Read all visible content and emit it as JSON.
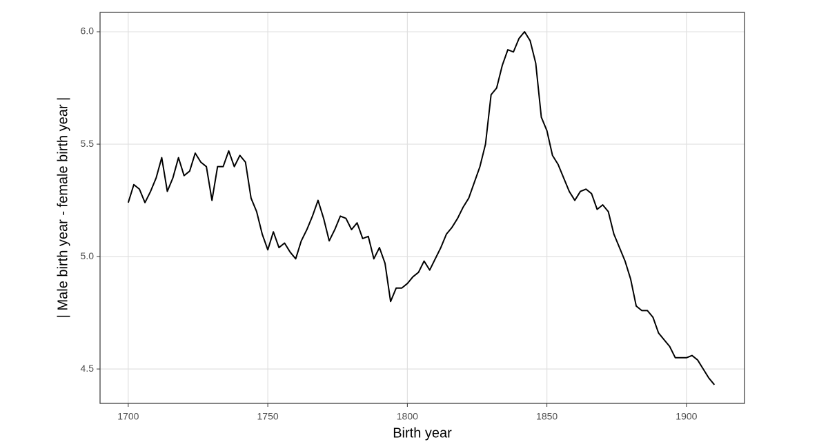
{
  "chart_data": {
    "type": "line",
    "x_label": "Birth year",
    "y_label": "| Male birth year - female birth year |",
    "x": [
      1700,
      1702,
      1704,
      1706,
      1708,
      1710,
      1712,
      1714,
      1716,
      1718,
      1720,
      1722,
      1724,
      1726,
      1728,
      1730,
      1732,
      1734,
      1736,
      1738,
      1740,
      1742,
      1744,
      1746,
      1748,
      1750,
      1752,
      1754,
      1756,
      1758,
      1760,
      1762,
      1764,
      1766,
      1768,
      1770,
      1772,
      1774,
      1776,
      1778,
      1780,
      1782,
      1784,
      1786,
      1788,
      1790,
      1792,
      1794,
      1796,
      1798,
      1800,
      1802,
      1804,
      1806,
      1808,
      1810,
      1812,
      1814,
      1816,
      1818,
      1820,
      1822,
      1824,
      1826,
      1828,
      1830,
      1832,
      1834,
      1836,
      1838,
      1840,
      1842,
      1844,
      1846,
      1848,
      1850,
      1852,
      1854,
      1856,
      1858,
      1860,
      1862,
      1864,
      1866,
      1868,
      1870,
      1872,
      1874,
      1876,
      1878,
      1880,
      1882,
      1884,
      1886,
      1888,
      1890,
      1892,
      1894,
      1896,
      1898,
      1900,
      1902,
      1904,
      1906,
      1908,
      1910
    ],
    "series": [
      {
        "color": "#000000",
        "values": [
          5.24,
          5.32,
          5.3,
          5.24,
          5.29,
          5.35,
          5.44,
          5.29,
          5.35,
          5.44,
          5.36,
          5.38,
          5.46,
          5.42,
          5.4,
          5.25,
          5.4,
          5.4,
          5.47,
          5.4,
          5.45,
          5.42,
          5.26,
          5.2,
          5.1,
          5.03,
          5.11,
          5.04,
          5.06,
          5.02,
          4.99,
          5.07,
          5.12,
          5.18,
          5.25,
          5.17,
          5.07,
          5.12,
          5.18,
          5.17,
          5.12,
          5.15,
          5.08,
          5.09,
          4.99,
          5.04,
          4.97,
          4.8,
          4.86,
          4.86,
          4.88,
          4.91,
          4.93,
          4.98,
          4.94,
          4.99,
          5.04,
          5.1,
          5.13,
          5.17,
          5.22,
          5.26,
          5.33,
          5.4,
          5.5,
          5.72,
          5.75,
          5.85,
          5.92,
          5.91,
          5.97,
          6.0,
          5.96,
          5.86,
          5.62,
          5.56,
          5.45,
          5.41,
          5.35,
          5.29,
          5.25,
          5.29,
          5.3,
          5.28,
          5.21,
          5.23,
          5.2,
          5.1,
          5.04,
          4.98,
          4.9,
          4.78,
          4.76,
          4.76,
          4.73,
          4.66,
          4.63,
          4.6,
          4.55,
          4.55,
          4.55,
          4.56,
          4.54,
          4.5,
          4.46,
          4.43
        ]
      }
    ],
    "xlim": [
      1689.9,
      1920.8
    ],
    "ylim": [
      4.347,
      6.086
    ],
    "xticks": [
      1700,
      1750,
      1800,
      1850,
      1900
    ],
    "yticks": [
      {
        "value": 4.5,
        "label": "4.5"
      },
      {
        "value": 5.0,
        "label": "5.0"
      },
      {
        "value": 5.5,
        "label": "5.5"
      },
      {
        "value": 6.0,
        "label": "6.0"
      }
    ],
    "grid": true
  }
}
